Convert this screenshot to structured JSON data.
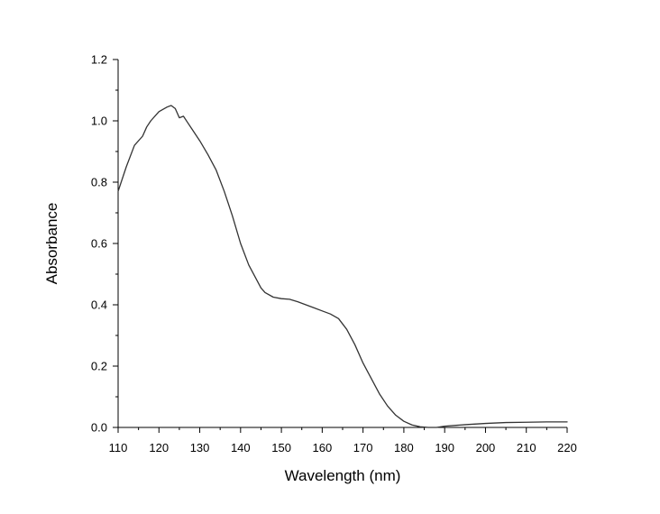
{
  "chart_data": {
    "type": "line",
    "title": "",
    "xlabel": "Wavelength (nm)",
    "ylabel": "Absorbance",
    "xlim": [
      110,
      220
    ],
    "ylim": [
      0.0,
      1.2
    ],
    "x_ticks": [
      "110",
      "120",
      "130",
      "140",
      "150",
      "160",
      "170",
      "180",
      "190",
      "200",
      "210",
      "220"
    ],
    "y_ticks": [
      "0.0",
      "0.2",
      "0.4",
      "0.6",
      "0.8",
      "1.0",
      "1.2"
    ],
    "grid": false,
    "line_color": "#333333",
    "series": [
      {
        "x": [
          110,
          112,
          114,
          116,
          117,
          118,
          120,
          122,
          123,
          124,
          125,
          126,
          127,
          128,
          130,
          132,
          134,
          136,
          138,
          140,
          142,
          144,
          145,
          146,
          148,
          150,
          152,
          154,
          156,
          158,
          160,
          162,
          164,
          166,
          168,
          170,
          172,
          174,
          176,
          178,
          180,
          182,
          184,
          186,
          188,
          190,
          195,
          200,
          205,
          210,
          215,
          220
        ],
        "y": [
          0.77,
          0.85,
          0.92,
          0.95,
          0.98,
          1.0,
          1.03,
          1.045,
          1.05,
          1.04,
          1.01,
          1.015,
          0.995,
          0.975,
          0.935,
          0.89,
          0.84,
          0.77,
          0.69,
          0.6,
          0.53,
          0.48,
          0.455,
          0.44,
          0.425,
          0.42,
          0.418,
          0.41,
          0.4,
          0.39,
          0.38,
          0.37,
          0.355,
          0.32,
          0.27,
          0.21,
          0.16,
          0.11,
          0.07,
          0.04,
          0.02,
          0.008,
          0.002,
          0.0,
          0.0,
          0.004,
          0.009,
          0.013,
          0.016,
          0.017,
          0.018,
          0.018
        ]
      }
    ]
  }
}
